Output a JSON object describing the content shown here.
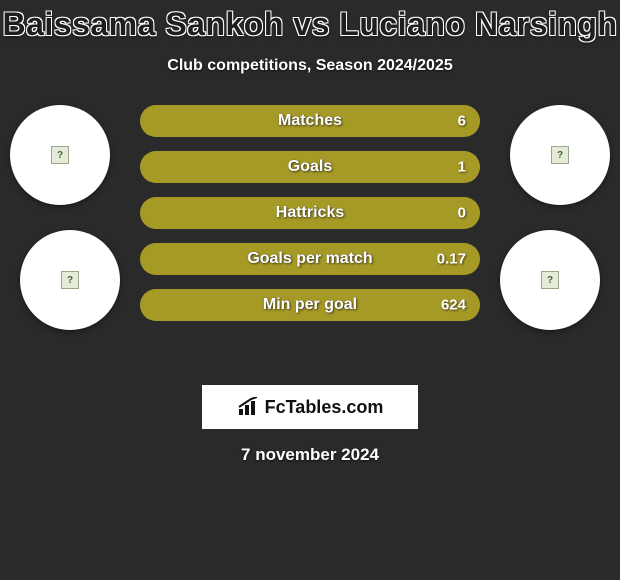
{
  "title": "Baissama Sankoh vs Luciano Narsingh",
  "subtitle": "Club competitions, Season 2024/2025",
  "date": "7 november 2024",
  "bar_fill_color": "#a69a27",
  "bar_bg_color": "#2e2e2e",
  "stats": [
    {
      "label": "Matches",
      "value_right": "6",
      "fill_pct": 100
    },
    {
      "label": "Goals",
      "value_right": "1",
      "fill_pct": 100
    },
    {
      "label": "Hattricks",
      "value_right": "0",
      "fill_pct": 100
    },
    {
      "label": "Goals per match",
      "value_right": "0.17",
      "fill_pct": 100
    },
    {
      "label": "Min per goal",
      "value_right": "624",
      "fill_pct": 100
    }
  ],
  "footer_brand": "FcTables.com",
  "avatars": {
    "top_left": {
      "name": "player1-club-avatar"
    },
    "top_right": {
      "name": "player2-club-avatar"
    },
    "bot_left": {
      "name": "player1-avatar"
    },
    "bot_right": {
      "name": "player2-avatar"
    }
  }
}
